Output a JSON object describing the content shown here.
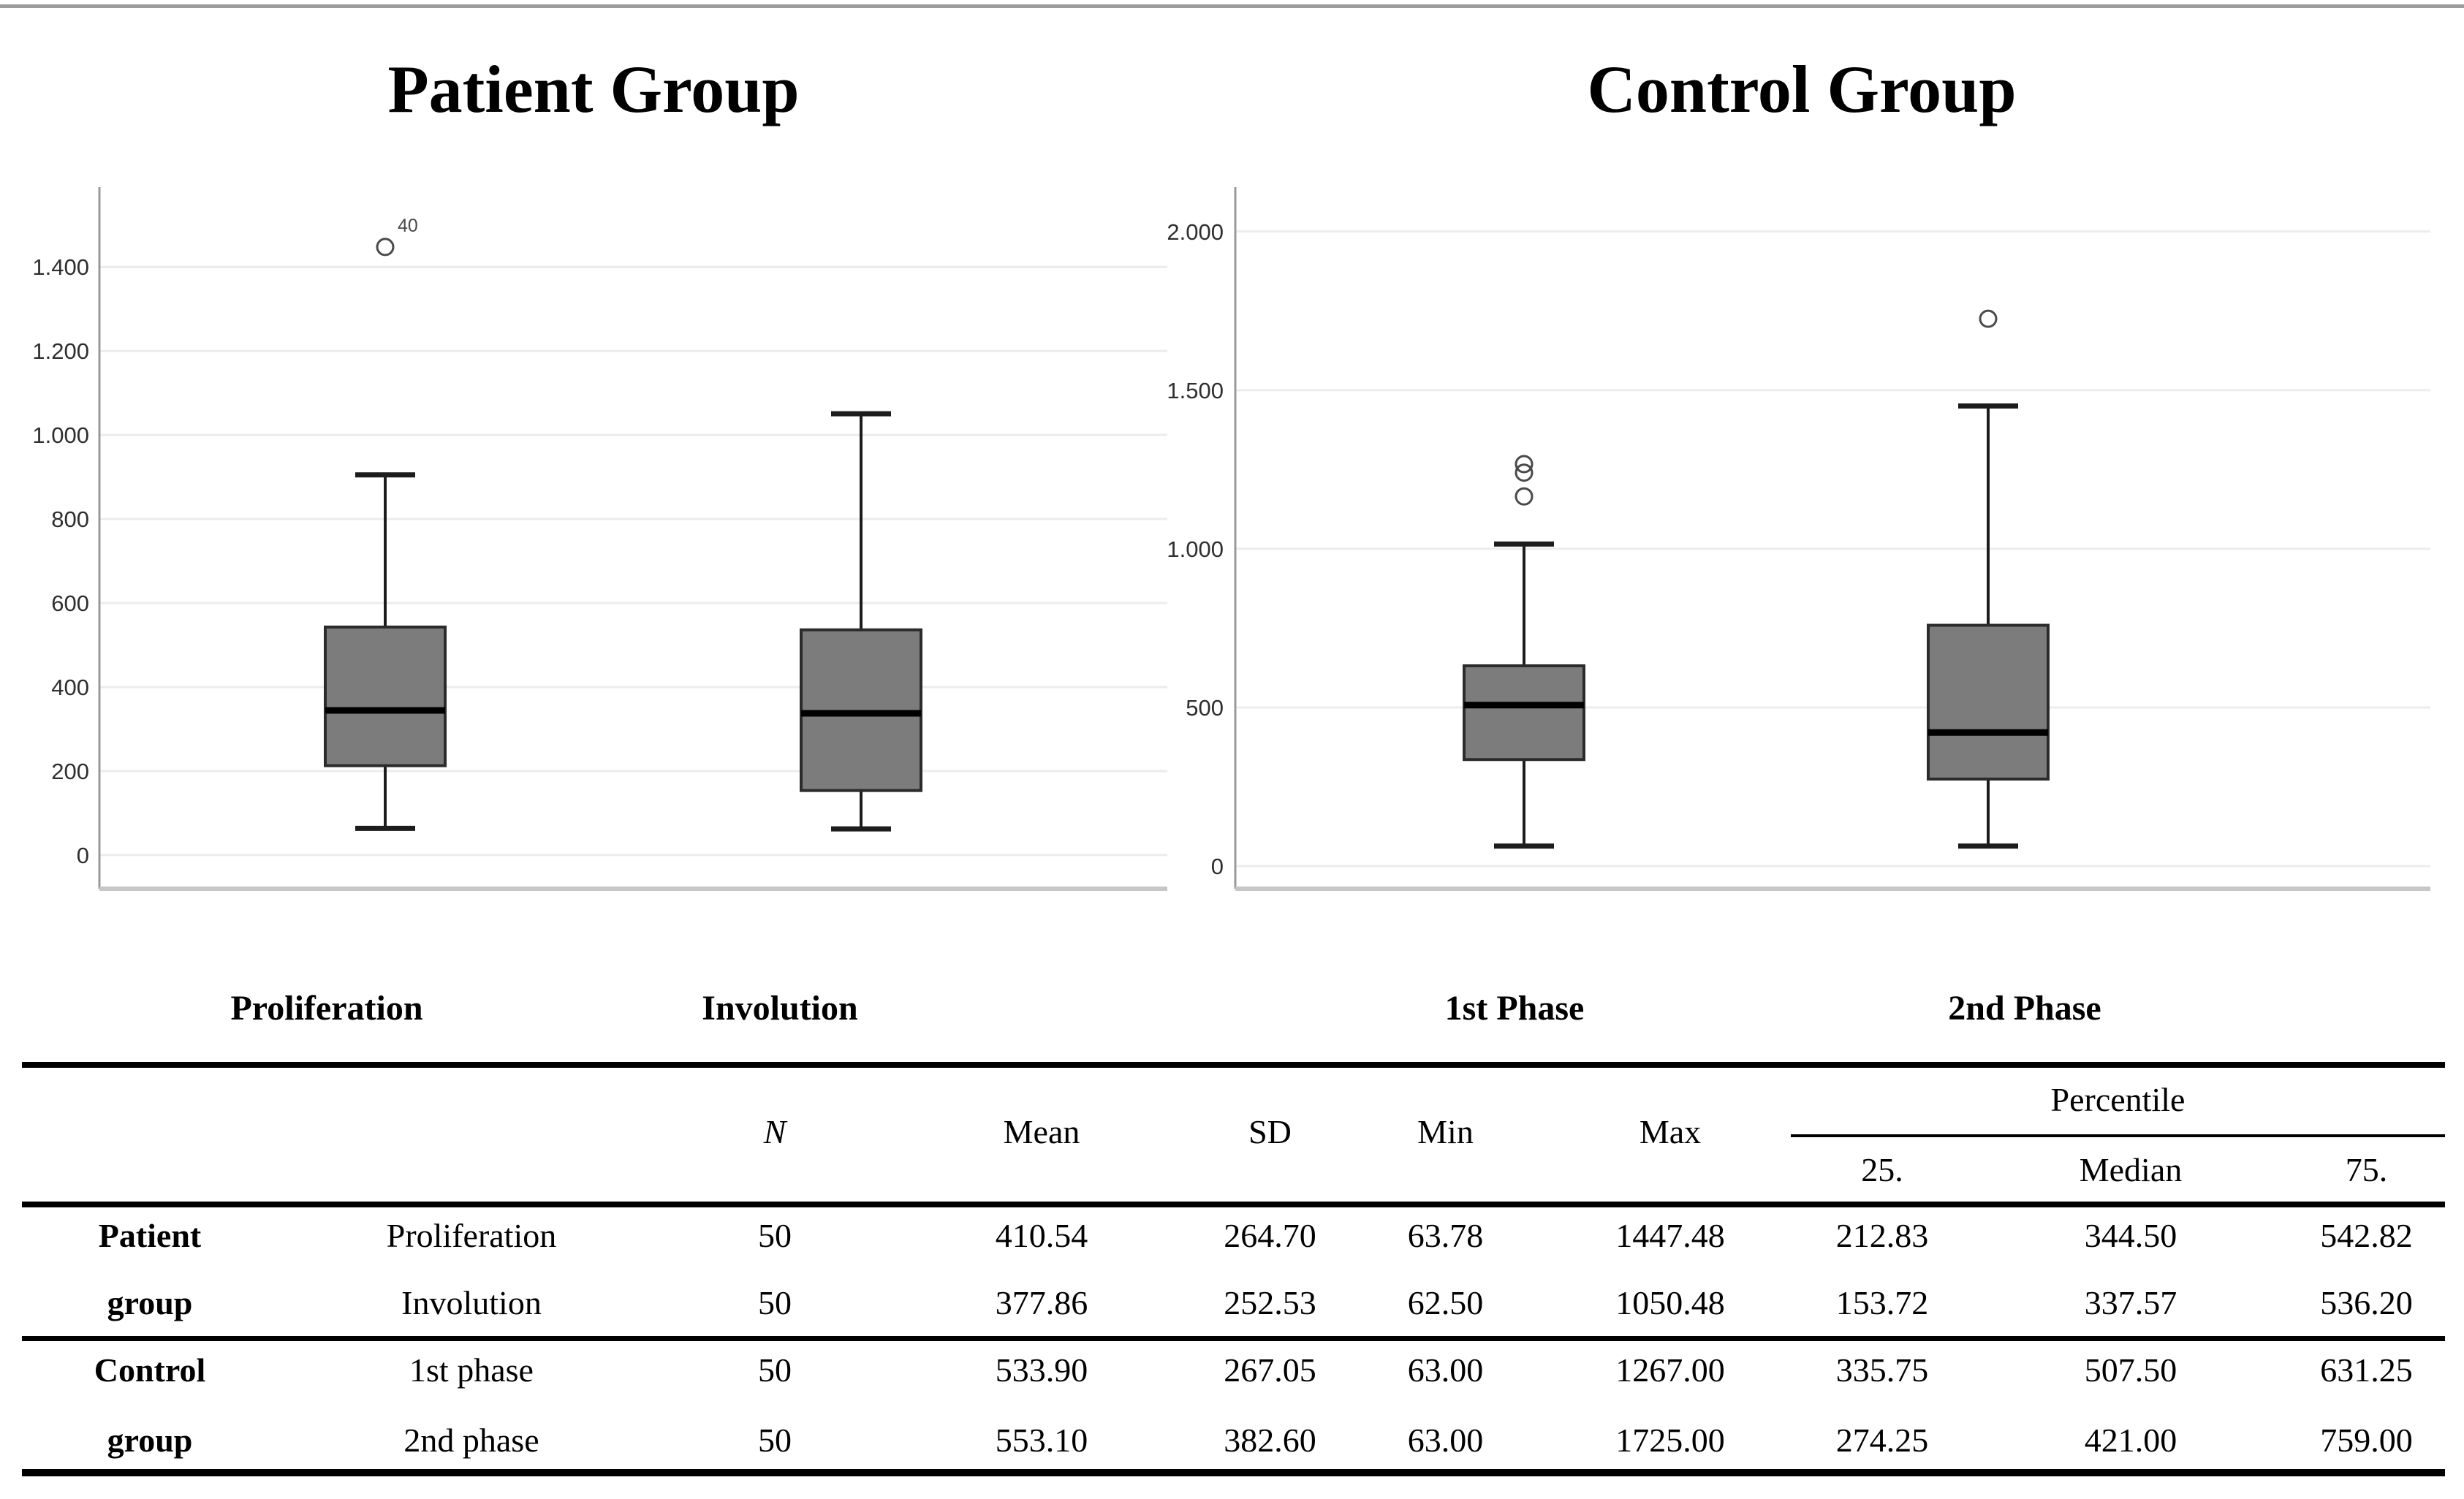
{
  "page": {
    "top_divider_color": "#9c9c9c",
    "box_fill_color": "#7c7c7c",
    "gridline_color": "#ececec"
  },
  "chart_data": [
    {
      "type": "boxplot",
      "title": "Patient Group",
      "categories": [
        "Proliferation",
        "Involution"
      ],
      "ylim": [
        0,
        1590
      ],
      "grid": true,
      "legend": false,
      "yticks": [
        {
          "value": 0,
          "label": "0"
        },
        {
          "value": 200,
          "label": "200"
        },
        {
          "value": 400,
          "label": "400"
        },
        {
          "value": 600,
          "label": "600"
        },
        {
          "value": 800,
          "label": "800"
        },
        {
          "value": 1000,
          "label": "1.000"
        },
        {
          "value": 1200,
          "label": "1.200"
        },
        {
          "value": 1400,
          "label": "1.400"
        }
      ],
      "series": [
        {
          "name": "Proliferation",
          "whisker_low": 63.78,
          "q1": 212.83,
          "median": 344.5,
          "q3": 542.82,
          "whisker_high": 905,
          "outliers": [
            {
              "value": 1447.48,
              "label": "40"
            }
          ]
        },
        {
          "name": "Involution",
          "whisker_low": 62.5,
          "q1": 153.72,
          "median": 337.57,
          "q3": 536.2,
          "whisker_high": 1050.48,
          "outliers": []
        }
      ]
    },
    {
      "type": "boxplot",
      "title": "Control Group",
      "categories": [
        "1st Phase",
        "2nd Phase"
      ],
      "ylim": [
        0,
        2140
      ],
      "grid": true,
      "legend": false,
      "yticks": [
        {
          "value": 0,
          "label": "0"
        },
        {
          "value": 500,
          "label": "500"
        },
        {
          "value": 1000,
          "label": "1.000"
        },
        {
          "value": 1500,
          "label": "1.500"
        },
        {
          "value": 2000,
          "label": "2.000"
        }
      ],
      "series": [
        {
          "name": "1st Phase",
          "whisker_low": 63.0,
          "q1": 335.75,
          "median": 507.5,
          "q3": 631.25,
          "whisker_high": 1015,
          "outliers": [
            {
              "value": 1267
            },
            {
              "value": 1240
            },
            {
              "value": 1165
            }
          ]
        },
        {
          "name": "2nd Phase",
          "whisker_low": 63.0,
          "q1": 274.25,
          "median": 421.0,
          "q3": 759.0,
          "whisker_high": 1450,
          "outliers": [
            {
              "value": 1725
            }
          ]
        }
      ]
    }
  ],
  "table": {
    "header": {
      "n": "N",
      "mean": "Mean",
      "sd": "SD",
      "min": "Min",
      "max": "Max",
      "percentile": "Percentile",
      "p25": "25.",
      "median": "Median",
      "p75": "75."
    },
    "rows": [
      {
        "group": "Patient",
        "phase": "Proliferation",
        "n": "50",
        "mean": "410.54",
        "sd": "264.70",
        "min": "63.78",
        "max": "1447.48",
        "p25": "212.83",
        "median": "344.50",
        "p75": "542.82"
      },
      {
        "group": "group",
        "phase": "Involution",
        "n": "50",
        "mean": "377.86",
        "sd": "252.53",
        "min": "62.50",
        "max": "1050.48",
        "p25": "153.72",
        "median": "337.57",
        "p75": "536.20"
      },
      {
        "group": "Control",
        "phase": "1st phase",
        "n": "50",
        "mean": "533.90",
        "sd": "267.05",
        "min": "63.00",
        "max": "1267.00",
        "p25": "335.75",
        "median": "507.50",
        "p75": "631.25"
      },
      {
        "group": "group",
        "phase": "2nd phase",
        "n": "50",
        "mean": "553.10",
        "sd": "382.60",
        "min": "63.00",
        "max": "1725.00",
        "p25": "274.25",
        "median": "421.00",
        "p75": "759.00"
      }
    ]
  }
}
